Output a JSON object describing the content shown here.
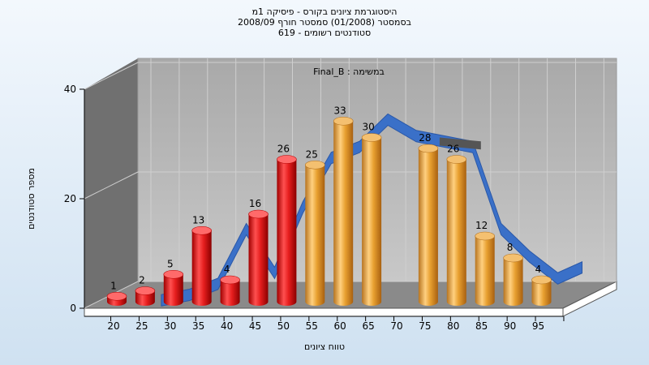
{
  "titles": {
    "line1": "היסטוגרמת ציונים בקורס - פיסיקה 1מ",
    "line2": "בסמסטר  (01/2008)  סמסטר חורף 2008/09",
    "line3": "619 - סטודנטים רשומים"
  },
  "chart_data": {
    "type": "bar",
    "title": "Final_B : במשימה",
    "xlabel": "טווח ציונים",
    "ylabel": "מספר סטודנטים",
    "categories": [
      "20",
      "25",
      "30",
      "35",
      "40",
      "45",
      "50",
      "55",
      "60",
      "65",
      "70",
      "75",
      "80",
      "85",
      "90",
      "95"
    ],
    "values": [
      1,
      2,
      5,
      13,
      4,
      16,
      26,
      25,
      33,
      30,
      null,
      28,
      26,
      12,
      8,
      4
    ],
    "ylim": [
      0,
      40
    ],
    "yticks": [
      0,
      20,
      40
    ],
    "grid": true,
    "colors": {
      "fail": "#e61e1e",
      "pass": "#e8a030",
      "curve": "#3a70c8",
      "curve_shadow": "#555555"
    },
    "fail_threshold": "55",
    "curve_values": [
      null,
      1,
      2,
      4,
      14,
      6,
      18,
      27,
      29,
      34,
      31,
      30,
      29,
      14,
      9,
      5
    ],
    "curve_end": 7
  }
}
